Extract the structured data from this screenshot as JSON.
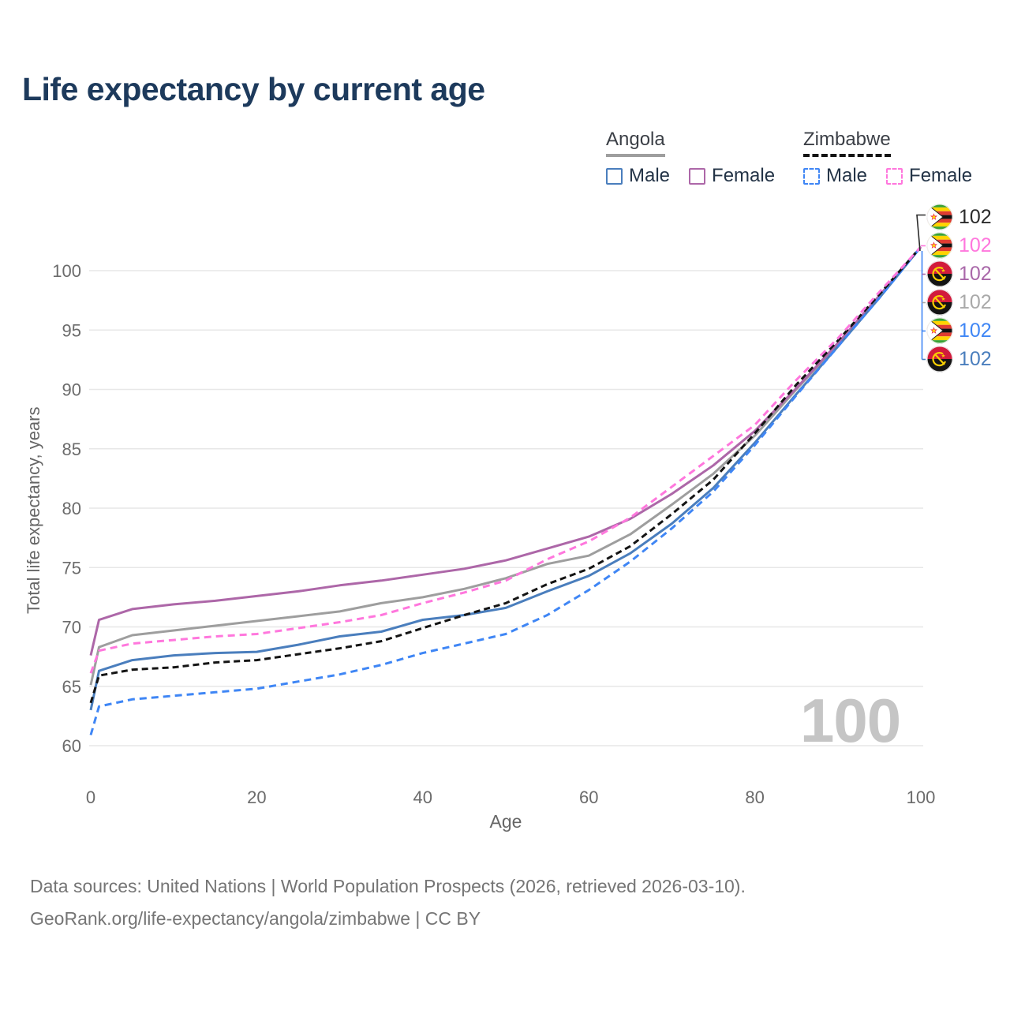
{
  "title": "Life expectancy by current age",
  "legend": {
    "groups": [
      {
        "country": "Angola",
        "line_style": "solid",
        "line_color": "#9e9e9e",
        "items": [
          {
            "label": "Male",
            "color": "#4a7ebd",
            "dashed": false
          },
          {
            "label": "Female",
            "color": "#ad67a8",
            "dashed": false
          }
        ]
      },
      {
        "country": "Zimbabwe",
        "line_style": "dashed",
        "line_color": "#141414",
        "items": [
          {
            "label": "Male",
            "color": "#3f86f5",
            "dashed": true
          },
          {
            "label": "Female",
            "color": "#ff77dd",
            "dashed": true
          }
        ]
      }
    ]
  },
  "end_labels": [
    {
      "country": "zimbabwe",
      "series": "Zimbabwe Both sexes",
      "value": "102",
      "color": "#2b2b2b"
    },
    {
      "country": "zimbabwe",
      "series": "Zimbabwe Female",
      "value": "102",
      "color": "#ff77dd"
    },
    {
      "country": "angola",
      "series": "Angola Female",
      "value": "102",
      "color": "#a968a9"
    },
    {
      "country": "angola",
      "series": "Angola Both sexes",
      "value": "102",
      "color": "#a9a9a9"
    },
    {
      "country": "zimbabwe",
      "series": "Zimbabwe Male",
      "value": "102",
      "color": "#3f86f5"
    },
    {
      "country": "angola",
      "series": "Angola Male",
      "value": "102",
      "color": "#4a7ebd"
    }
  ],
  "watermark": "100",
  "axis": {
    "x_title": "Age",
    "y_title": "Total life expectancy, years"
  },
  "footer": {
    "line1": "Data sources: United Nations | World Population Prospects (2026, retrieved 2026-03-10).",
    "line2": "GeoRank.org/life-expectancy/angola/zimbabwe | CC BY"
  },
  "chart_data": {
    "type": "line",
    "title": "Life expectancy by current age",
    "xlabel": "Age",
    "ylabel": "Total life expectancy, years",
    "xlim": [
      0,
      100
    ],
    "ylim": [
      60,
      100
    ],
    "xticks": [
      0,
      20,
      40,
      60,
      80,
      100
    ],
    "yticks": [
      60,
      65,
      70,
      75,
      80,
      85,
      90,
      95,
      100
    ],
    "grid": "horizontal",
    "legend_position": "top-right",
    "x": [
      0,
      1,
      5,
      10,
      15,
      20,
      25,
      30,
      35,
      40,
      45,
      50,
      55,
      60,
      65,
      70,
      75,
      80,
      85,
      90,
      95,
      100
    ],
    "series": [
      {
        "name": "Angola Both sexes",
        "color": "#9e9e9e",
        "dash": null,
        "values": [
          65.1,
          68.3,
          69.3,
          69.7,
          70.1,
          70.5,
          70.9,
          71.3,
          72.0,
          72.5,
          73.2,
          74.1,
          75.3,
          76.0,
          77.8,
          80.3,
          82.9,
          86.1,
          90.0,
          93.8,
          97.8,
          102
        ]
      },
      {
        "name": "Angola Female",
        "color": "#ad67a8",
        "dash": null,
        "values": [
          67.6,
          70.6,
          71.5,
          71.9,
          72.2,
          72.6,
          73.0,
          73.5,
          73.9,
          74.4,
          74.9,
          75.6,
          76.6,
          77.6,
          79.1,
          81.2,
          83.6,
          86.5,
          90.1,
          93.9,
          97.9,
          102
        ]
      },
      {
        "name": "Angola Male",
        "color": "#4a7ebd",
        "dash": null,
        "values": [
          63.0,
          66.3,
          67.2,
          67.6,
          67.8,
          67.9,
          68.5,
          69.2,
          69.6,
          70.6,
          71.0,
          71.6,
          73.0,
          74.3,
          76.2,
          78.7,
          81.7,
          85.5,
          89.6,
          93.6,
          97.7,
          102
        ]
      },
      {
        "name": "Zimbabwe Male",
        "color": "#3f86f5",
        "dash": [
          9,
          6
        ],
        "values": [
          60.9,
          63.3,
          63.9,
          64.2,
          64.5,
          64.8,
          65.4,
          66.0,
          66.8,
          67.8,
          68.6,
          69.4,
          71.0,
          73.1,
          75.5,
          78.3,
          81.4,
          85.3,
          89.5,
          93.6,
          97.7,
          102
        ]
      },
      {
        "name": "Zimbabwe Both sexes",
        "color": "#141414",
        "dash": [
          8,
          5
        ],
        "values": [
          63.6,
          65.9,
          66.4,
          66.6,
          67.0,
          67.2,
          67.7,
          68.2,
          68.8,
          69.9,
          71.0,
          72.0,
          73.6,
          74.9,
          76.8,
          79.5,
          82.4,
          86.3,
          90.4,
          94.1,
          98.0,
          102
        ]
      },
      {
        "name": "Zimbabwe Female",
        "color": "#ff77dd",
        "dash": [
          9,
          6
        ],
        "values": [
          66.1,
          68.0,
          68.6,
          68.9,
          69.2,
          69.4,
          69.9,
          70.4,
          71.0,
          72.0,
          72.9,
          73.9,
          75.7,
          77.2,
          79.2,
          81.8,
          84.4,
          87.0,
          90.8,
          94.3,
          98.2,
          102
        ]
      }
    ]
  }
}
